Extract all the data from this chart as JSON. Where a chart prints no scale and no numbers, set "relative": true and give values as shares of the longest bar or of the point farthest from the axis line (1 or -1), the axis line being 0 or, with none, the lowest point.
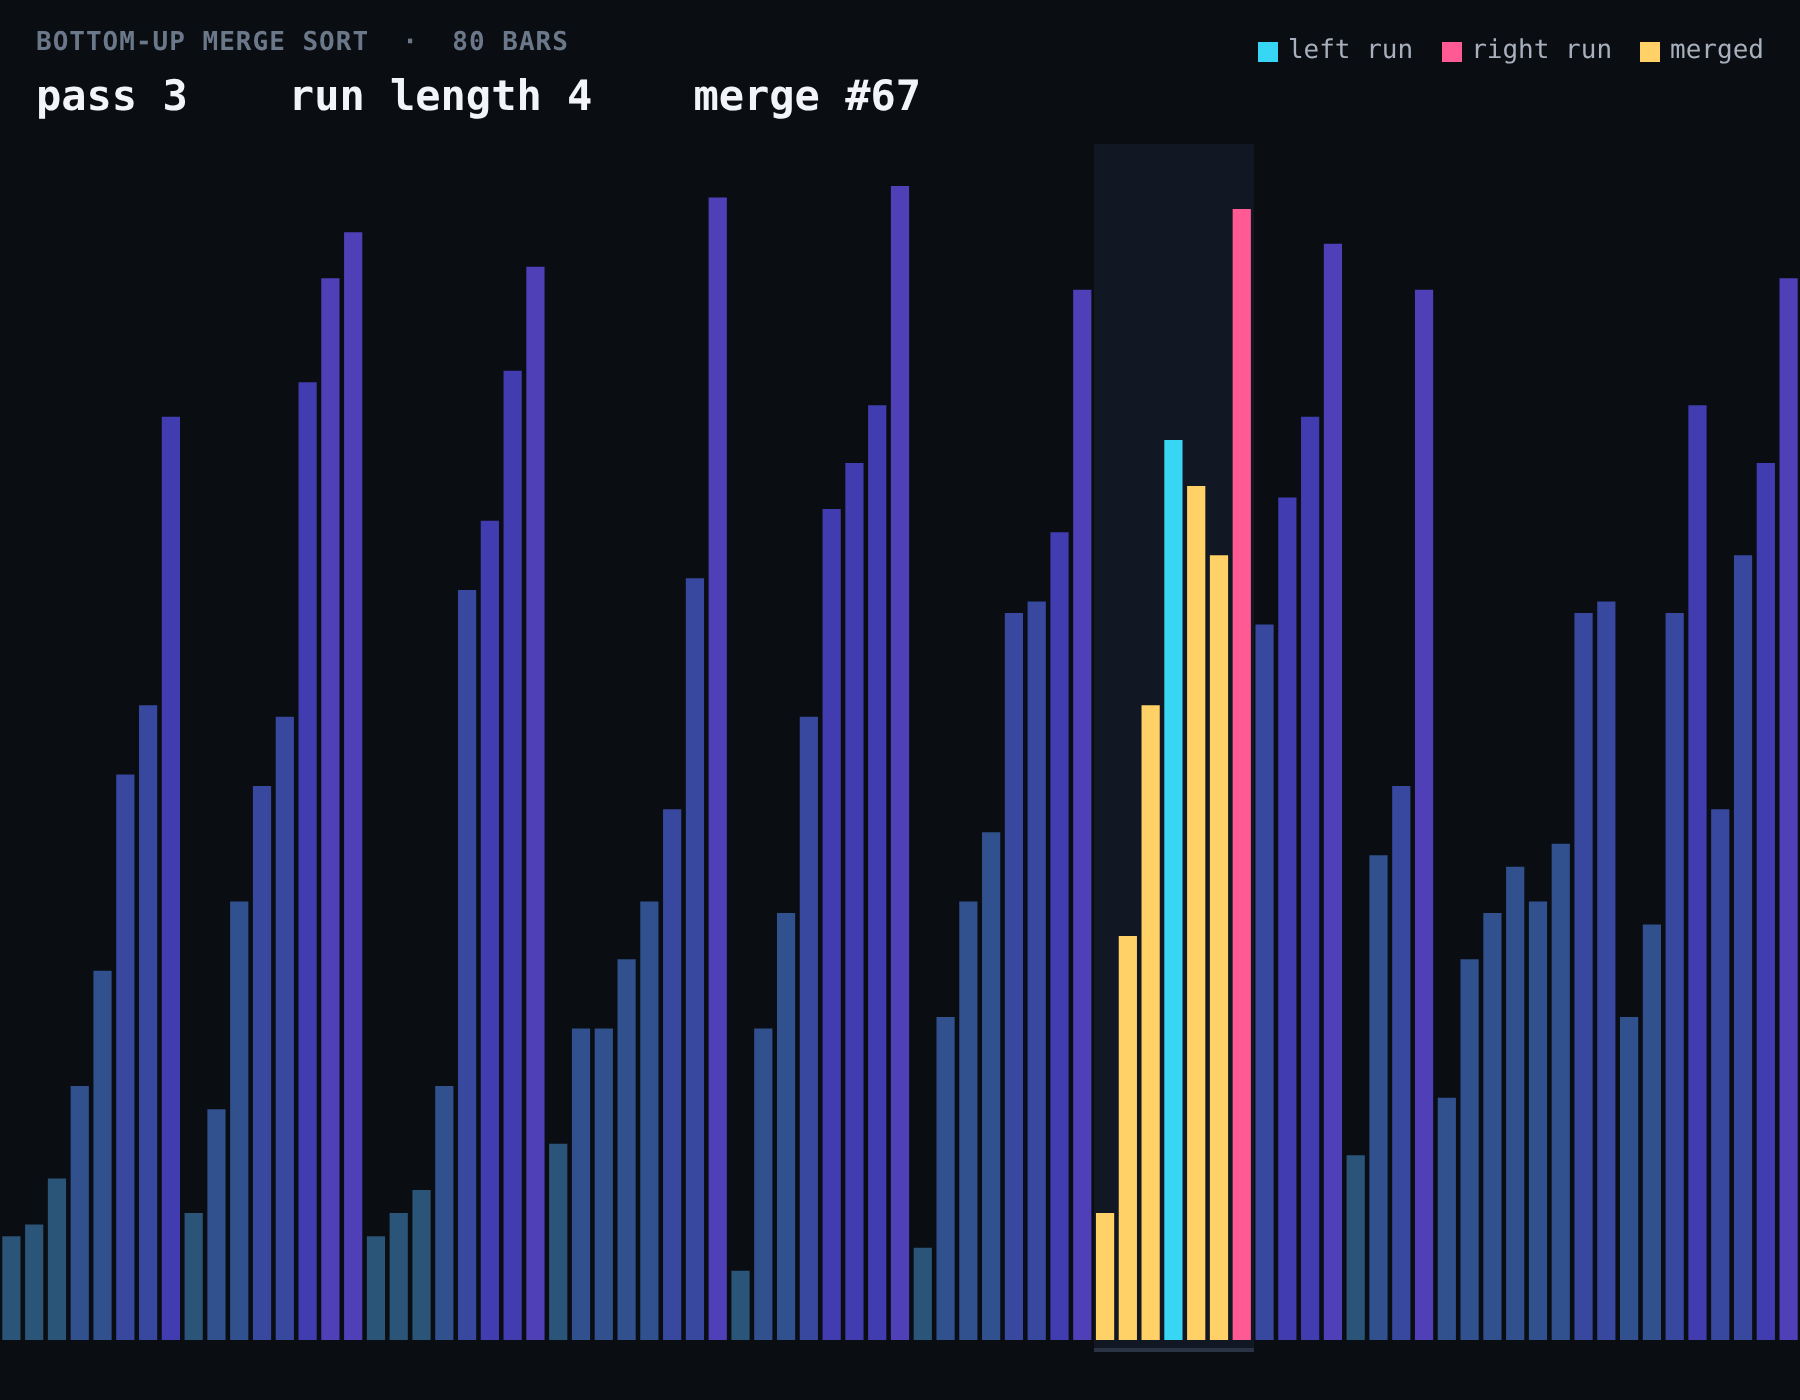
{
  "chart_data": {
    "type": "bar",
    "title": "BOTTOM-UP MERGE SORT  ·  80 BARS",
    "subtitle": "pass 3    run length 4    merge #67",
    "relative": true,
    "stacked": true,
    "legend": "top right",
    "categories": [
      null,
      null,
      null,
      null,
      null,
      null,
      null,
      null,
      null,
      null,
      null,
      null,
      null,
      null,
      null,
      null,
      null,
      null,
      null,
      null,
      null,
      null,
      null,
      null,
      null,
      null,
      null,
      null,
      null,
      null,
      null,
      null,
      null,
      null,
      null,
      null,
      null,
      null,
      null,
      null,
      null,
      null,
      null,
      null,
      null,
      null,
      null,
      null,
      null,
      null,
      null,
      null,
      null,
      null,
      null,
      null,
      null,
      null,
      null,
      null,
      null,
      null,
      null,
      null,
      null,
      null,
      null,
      null,
      null,
      null,
      null,
      null,
      null,
      null,
      null,
      null,
      null,
      null,
      null
    ],
    "series": [
      {
        "values": [
          0.09,
          0.1,
          0.14,
          0.22,
          0.32,
          0.49,
          0.55,
          0.8,
          0.11,
          0.2,
          0.38,
          0.48,
          0.54,
          0.83,
          0.92,
          0.96,
          0.09,
          0.11,
          0.13,
          0.22,
          0.65,
          0.71,
          0.84,
          0.93,
          0.17,
          0.27,
          0.27,
          0.33,
          0.38,
          0.46,
          0.66,
          0.99,
          0.06,
          0.27,
          0.37,
          0.54,
          0.72,
          0.76,
          0.81,
          1,
          0.08,
          0.28,
          0.38,
          0.44,
          0.63,
          0.64,
          0.7,
          0.91,
          null,
          null,
          null,
          null,
          null,
          null,
          null,
          0.62,
          0.73,
          0.8,
          0.95,
          0.16,
          0.42,
          0.48,
          0.91,
          0.21,
          0.33,
          0.37,
          0.41,
          0.38,
          0.43,
          0.63,
          0.64,
          0.28,
          0.36,
          0.63,
          0.81,
          0.46,
          0.68,
          0.76,
          0.92
        ],
        "colors": [
          "#2a5478",
          "#2a5478",
          "#2a5478",
          "#30508e",
          "#30508e",
          "#37489e",
          "#37489e",
          "#413db0",
          "#2a5478",
          "#30508e",
          "#30508e",
          "#37489e",
          "#37489e",
          "#413db0",
          "#4f40b8",
          "#4f40b8",
          "#2a5478",
          "#2a5478",
          "#2a5478",
          "#30508e",
          "#37489e",
          "#413db0",
          "#413db0",
          "#4f40b8",
          "#2a5478",
          "#30508e",
          "#30508e",
          "#30508e",
          "#30508e",
          "#37489e",
          "#37489e",
          "#4f40b8",
          "#2a5478",
          "#30508e",
          "#30508e",
          "#37489e",
          "#413db0",
          "#413db0",
          "#413db0",
          "#4f40b8",
          "#2a5478",
          "#30508e",
          "#30508e",
          "#30508e",
          "#37489e",
          "#37489e",
          "#413db0",
          "#4f40b8",
          "#2a5478",
          "#2a5478",
          "#2a5478",
          "#2a5478",
          "#2a5478",
          "#2a5478",
          "#2a5478",
          "#37489e",
          "#413db0",
          "#413db0",
          "#4f40b8",
          "#2a5478",
          "#30508e",
          "#37489e",
          "#4f40b8",
          "#30508e",
          "#30508e",
          "#30508e",
          "#30508e",
          "#30508e",
          "#30508e",
          "#37489e",
          "#37489e",
          "#30508e",
          "#30508e",
          "#37489e",
          "#413db0",
          "#37489e",
          "#37489e",
          "#413db0",
          "#4f40b8"
        ]
      },
      {
        "name": "left run",
        "color": "#38d6f5",
        "values": [
          null,
          null,
          null,
          null,
          null,
          null,
          null,
          null,
          null,
          null,
          null,
          null,
          null,
          null,
          null,
          null,
          null,
          null,
          null,
          null,
          null,
          null,
          null,
          null,
          null,
          null,
          null,
          null,
          null,
          null,
          null,
          null,
          null,
          null,
          null,
          null,
          null,
          null,
          null,
          null,
          null,
          null,
          null,
          null,
          null,
          null,
          null,
          null,
          null,
          null,
          null,
          0.78,
          null,
          null,
          null,
          null,
          null,
          null,
          null,
          null,
          null,
          null,
          null,
          null,
          null,
          null,
          null,
          null,
          null,
          null,
          null,
          null,
          null,
          null,
          null,
          null,
          null,
          null,
          null
        ]
      },
      {
        "name": "right run",
        "color": "#ff5a94",
        "values": [
          null,
          null,
          null,
          null,
          null,
          null,
          null,
          null,
          null,
          null,
          null,
          null,
          null,
          null,
          null,
          null,
          null,
          null,
          null,
          null,
          null,
          null,
          null,
          null,
          null,
          null,
          null,
          null,
          null,
          null,
          null,
          null,
          null,
          null,
          null,
          null,
          null,
          null,
          null,
          null,
          null,
          null,
          null,
          null,
          null,
          null,
          null,
          null,
          null,
          null,
          null,
          null,
          null,
          null,
          0.98,
          null,
          null,
          null,
          null,
          null,
          null,
          null,
          null,
          null,
          null,
          null,
          null,
          null,
          null,
          null,
          null,
          null,
          null,
          null,
          null,
          null,
          null,
          null,
          null
        ]
      },
      {
        "name": "merged",
        "color": "#ffd166",
        "values": [
          null,
          null,
          null,
          null,
          null,
          null,
          null,
          null,
          null,
          null,
          null,
          null,
          null,
          null,
          null,
          null,
          null,
          null,
          null,
          null,
          null,
          null,
          null,
          null,
          null,
          null,
          null,
          null,
          null,
          null,
          null,
          null,
          null,
          null,
          null,
          null,
          null,
          null,
          null,
          null,
          null,
          null,
          null,
          null,
          null,
          null,
          null,
          null,
          0.11,
          0.35,
          0.55,
          null,
          0.74,
          0.68,
          null,
          null,
          null,
          null,
          null,
          null,
          null,
          null,
          null,
          null,
          null,
          null,
          null,
          null,
          null,
          null,
          null,
          null,
          null,
          null,
          null,
          null,
          null,
          null,
          null
        ]
      }
    ]
  }
}
